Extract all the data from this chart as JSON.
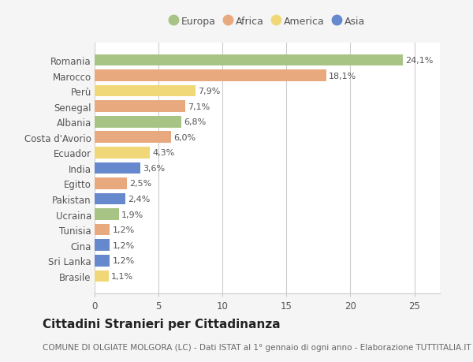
{
  "countries": [
    "Romania",
    "Marocco",
    "Perù",
    "Senegal",
    "Albania",
    "Costa d'Avorio",
    "Ecuador",
    "India",
    "Egitto",
    "Pakistan",
    "Ucraina",
    "Tunisia",
    "Cina",
    "Sri Lanka",
    "Brasile"
  ],
  "values": [
    24.1,
    18.1,
    7.9,
    7.1,
    6.8,
    6.0,
    4.3,
    3.6,
    2.5,
    2.4,
    1.9,
    1.2,
    1.2,
    1.2,
    1.1
  ],
  "labels": [
    "24,1%",
    "18,1%",
    "7,9%",
    "7,1%",
    "6,8%",
    "6,0%",
    "4,3%",
    "3,6%",
    "2,5%",
    "2,4%",
    "1,9%",
    "1,2%",
    "1,2%",
    "1,2%",
    "1,1%"
  ],
  "continents": [
    "Europa",
    "Africa",
    "America",
    "Africa",
    "Europa",
    "Africa",
    "America",
    "Asia",
    "Africa",
    "Asia",
    "Europa",
    "Africa",
    "Asia",
    "Asia",
    "America"
  ],
  "continent_colors": {
    "Europa": "#a8c484",
    "Africa": "#e8a97e",
    "America": "#f0d878",
    "Asia": "#6688cc"
  },
  "legend_order": [
    "Europa",
    "Africa",
    "America",
    "Asia"
  ],
  "title": "Cittadini Stranieri per Cittadinanza",
  "subtitle": "COMUNE DI OLGIATE MOLGORA (LC) - Dati ISTAT al 1° gennaio di ogni anno - Elaborazione TUTTITALIA.IT",
  "xlim": [
    0,
    27
  ],
  "xticks": [
    0,
    5,
    10,
    15,
    20,
    25
  ],
  "background_color": "#f5f5f5",
  "plot_bg_color": "#ffffff",
  "grid_color": "#cccccc",
  "title_fontsize": 11,
  "subtitle_fontsize": 7.5,
  "label_fontsize": 8,
  "tick_fontsize": 8.5,
  "legend_fontsize": 9
}
